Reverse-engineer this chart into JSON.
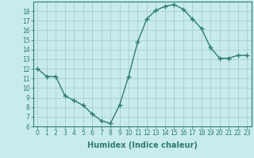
{
  "x": [
    0,
    1,
    2,
    3,
    4,
    5,
    6,
    7,
    8,
    9,
    10,
    11,
    12,
    13,
    14,
    15,
    16,
    17,
    18,
    19,
    20,
    21,
    22,
    23
  ],
  "y": [
    12,
    11.2,
    11.2,
    9.2,
    8.7,
    8.2,
    7.3,
    6.6,
    6.3,
    8.2,
    11.2,
    14.8,
    17.2,
    18.1,
    18.5,
    18.7,
    18.2,
    17.2,
    16.2,
    14.2,
    13.1,
    13.1,
    13.4,
    13.4
  ],
  "line_color": "#2e7d6e",
  "marker": "+",
  "marker_size": 4,
  "bg_color": "#c8ecec",
  "grid_color": "#aacece",
  "xlabel": "Humidex (Indice chaleur)",
  "xlim": [
    -0.5,
    23.5
  ],
  "ylim": [
    6,
    19
  ],
  "yticks": [
    6,
    7,
    8,
    9,
    10,
    11,
    12,
    13,
    14,
    15,
    16,
    17,
    18
  ],
  "xticks": [
    0,
    1,
    2,
    3,
    4,
    5,
    6,
    7,
    8,
    9,
    10,
    11,
    12,
    13,
    14,
    15,
    16,
    17,
    18,
    19,
    20,
    21,
    22,
    23
  ],
  "tick_color": "#2e7d6e",
  "label_color": "#2e7d6e",
  "spine_color": "#2e7d6e",
  "tick_fontsize": 5.5,
  "xlabel_fontsize": 7,
  "linewidth": 1.0
}
